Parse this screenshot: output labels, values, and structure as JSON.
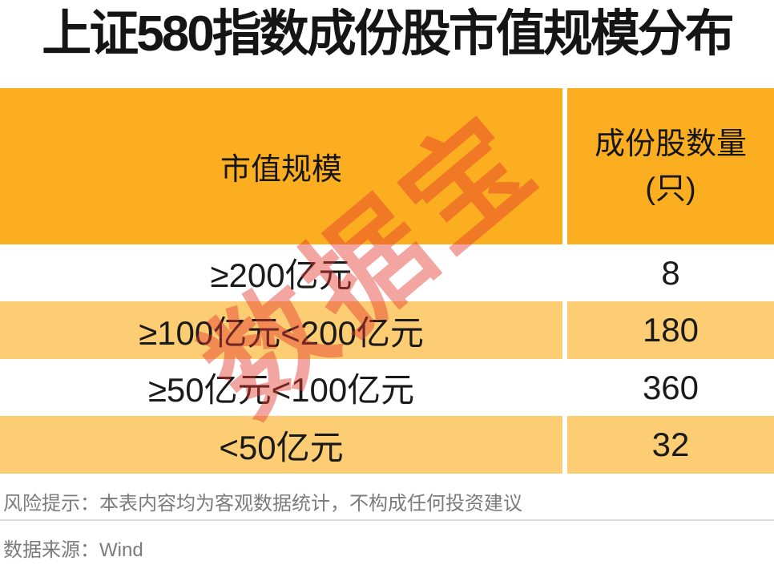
{
  "title": "上证580指数成份股市值规模分布",
  "table": {
    "header": {
      "col1": "市值规模",
      "col2_line1": "成份股数量",
      "col2_line2": "(只)"
    },
    "rows": [
      {
        "label": "≥200亿元",
        "value": "8"
      },
      {
        "label": "≥100亿元<200亿元",
        "value": "180"
      },
      {
        "label": "≥50亿元<100亿元",
        "value": "360"
      },
      {
        "label": "<50亿元",
        "value": "32"
      }
    ]
  },
  "watermark": "数据宝",
  "footer": {
    "risk": "风险提示：本表内容均为客观数据统计，不构成任何投资建议",
    "source": "数据来源：Wind"
  },
  "colors": {
    "header_orange": "#FBAE1F",
    "row_orange": "#FCCD72",
    "title_text": "#151515",
    "body_text": "#1a1a1a",
    "footer_text": "#7b7b7b",
    "footer_divider": "#dcdcdc",
    "watermark_red": "#E5392E",
    "background": "#ffffff"
  },
  "chart_data": {
    "type": "table",
    "title": "上证580指数成份股市值规模分布",
    "columns": [
      "市值规模",
      "成份股数量(只)"
    ],
    "categories": [
      "≥200亿元",
      "≥100亿元<200亿元",
      "≥50亿元<100亿元",
      "<50亿元"
    ],
    "values": [
      8,
      180,
      360,
      32
    ],
    "source": "Wind",
    "legend_position": "none",
    "grid": false
  }
}
